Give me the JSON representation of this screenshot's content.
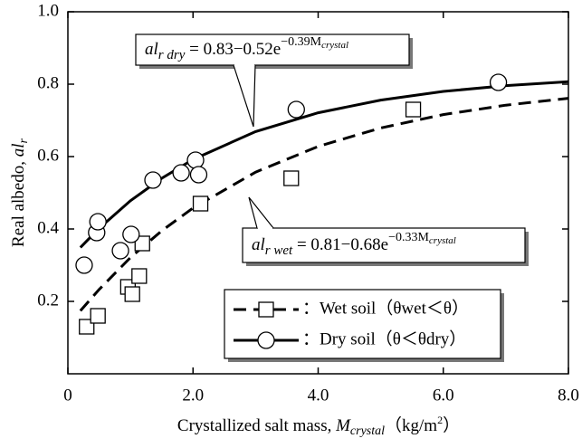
{
  "chart_data": {
    "type": "scatter",
    "x_label": [
      "Crystallized salt mass, ",
      "M",
      "crystal",
      "（kg/m",
      "2",
      "）"
    ],
    "y_label": [
      "Real albedo, ",
      "al",
      "r"
    ],
    "xlim": [
      0,
      8
    ],
    "ylim": [
      0,
      1
    ],
    "xticks": [
      0,
      {
        "value": 2,
        "label": "2.0"
      },
      {
        "value": 4,
        "label": "4.0"
      },
      {
        "value": 6,
        "label": "6.0"
      },
      {
        "value": 8,
        "label": "8.0"
      }
    ],
    "yticks": [
      0.2,
      0.4,
      0.6,
      0.8,
      {
        "value": 1,
        "label": "1.0"
      }
    ],
    "series": [
      {
        "name": "：Wet soil（θwet＜θ）",
        "marker": "square",
        "color": "#000",
        "x": [
          0.3,
          0.48,
          0.96,
          1.03,
          1.14,
          1.19,
          2.12,
          3.57,
          5.52
        ],
        "values": [
          0.13,
          0.16,
          0.24,
          0.22,
          0.27,
          0.36,
          0.47,
          0.54,
          0.73
        ]
      },
      {
        "name": "：Dry soil（θ＜θdry）",
        "marker": "circle",
        "color": "#000",
        "x": [
          0.26,
          0.46,
          0.48,
          0.84,
          1.01,
          1.36,
          1.81,
          2.04,
          2.09,
          3.65,
          6.88
        ],
        "values": [
          0.3,
          0.39,
          0.42,
          0.34,
          0.385,
          0.535,
          0.555,
          0.59,
          0.55,
          0.73,
          0.805
        ]
      }
    ],
    "fits": [
      {
        "dashed": true,
        "x": [
          0.2,
          0.5,
          1,
          1.5,
          2,
          3,
          4,
          5,
          6,
          7,
          8
        ],
        "values": [
          0.174,
          0.233,
          0.321,
          0.395,
          0.458,
          0.557,
          0.628,
          0.679,
          0.716,
          0.742,
          0.761
        ]
      },
      {
        "dashed": false,
        "x": [
          0.2,
          0.5,
          1,
          1.5,
          2,
          3,
          4,
          5,
          6,
          7,
          8
        ],
        "values": [
          0.349,
          0.402,
          0.478,
          0.54,
          0.592,
          0.669,
          0.721,
          0.756,
          0.78,
          0.796,
          0.807
        ]
      }
    ],
    "annotations": [
      [
        "al",
        "r dry",
        " = 0.83−0.52e",
        "−0.39M",
        "crystal"
      ],
      [
        "al",
        "r wet",
        " = 0.81−0.68e",
        "−0.33M",
        "crystal"
      ]
    ]
  }
}
